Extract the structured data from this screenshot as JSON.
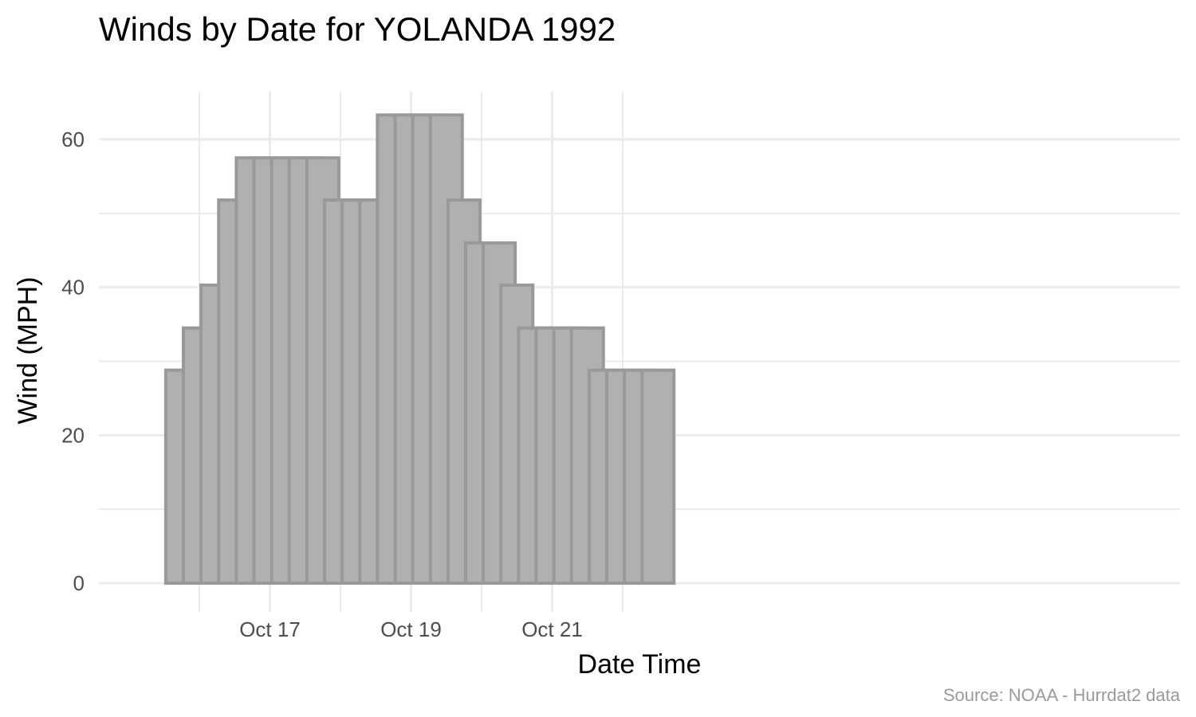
{
  "chart_data": {
    "type": "bar",
    "title": "Winds by Date for YOLANDA 1992",
    "xlabel": "Date Time",
    "ylabel": "Wind (MPH)",
    "caption": "Source: NOAA - Hurrdat2 data",
    "x_tick_labels": [
      "Oct 17",
      "Oct 19",
      "Oct 21"
    ],
    "x_tick_dates": [
      "1992-10-17",
      "1992-10-19",
      "1992-10-21"
    ],
    "y_tick_labels": [
      "0",
      "20",
      "40",
      "60"
    ],
    "y_ticks": [
      0,
      20,
      40,
      60
    ],
    "ylim": [
      0,
      66
    ],
    "xlim": [
      "1992-10-15 00:00",
      "1992-10-22 18:00"
    ],
    "grid": true,
    "colors": {
      "bar_fill": "#b0b0b0",
      "bar_stroke": "#999999",
      "grid": "#ebebeb"
    },
    "categories": [
      "1992-10-15 18:00",
      "1992-10-16 00:00",
      "1992-10-16 06:00",
      "1992-10-16 12:00",
      "1992-10-16 18:00",
      "1992-10-17 00:00",
      "1992-10-17 06:00",
      "1992-10-17 12:00",
      "1992-10-17 18:00",
      "1992-10-18 00:00",
      "1992-10-18 06:00",
      "1992-10-18 12:00",
      "1992-10-18 18:00",
      "1992-10-19 00:00",
      "1992-10-19 06:00",
      "1992-10-19 12:00",
      "1992-10-19 18:00",
      "1992-10-20 00:00",
      "1992-10-20 06:00",
      "1992-10-20 12:00",
      "1992-10-20 18:00",
      "1992-10-21 00:00",
      "1992-10-21 06:00",
      "1992-10-21 12:00",
      "1992-10-21 18:00",
      "1992-10-22 00:00",
      "1992-10-22 06:00",
      "1992-10-22 12:00"
    ],
    "values": [
      28.8,
      34.5,
      40.3,
      51.8,
      57.5,
      57.5,
      57.5,
      57.5,
      57.5,
      51.8,
      51.8,
      51.8,
      63.3,
      63.3,
      63.3,
      63.3,
      51.8,
      46.0,
      46.0,
      40.3,
      34.5,
      34.5,
      34.5,
      34.5,
      28.8,
      28.8,
      28.8,
      28.8
    ]
  }
}
